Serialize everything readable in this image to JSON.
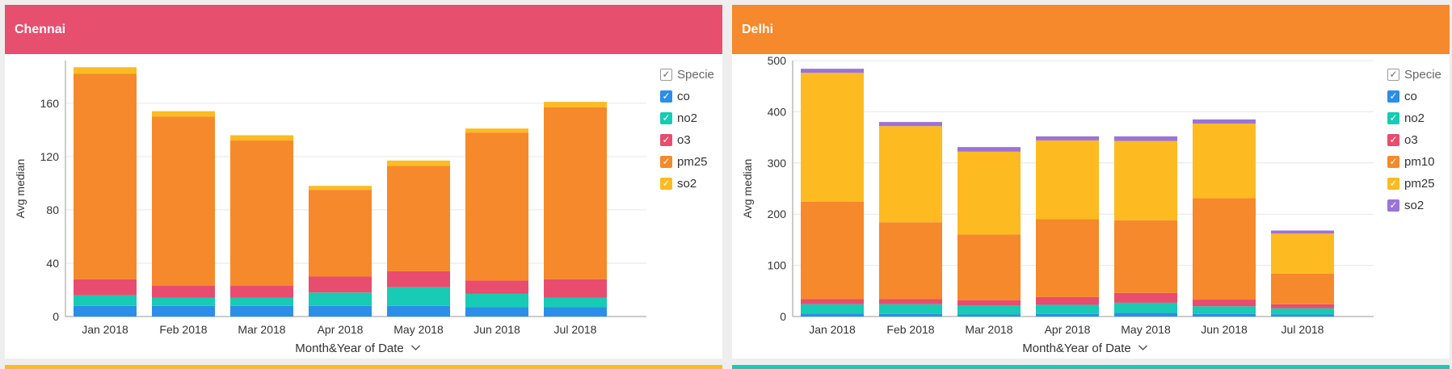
{
  "panels": [
    {
      "title": "Chennai",
      "header_color": "#e74f6f",
      "legend_title": "Specie",
      "chart_data": {
        "type": "bar",
        "stacked": true,
        "title": "Chennai",
        "xlabel": "Month&Year of Date",
        "ylabel": "Avg median",
        "categories": [
          "Jan 2018",
          "Feb 2018",
          "Mar 2018",
          "Apr 2018",
          "May 2018",
          "Jun 2018",
          "Jul 2018"
        ],
        "yticks": [
          0,
          40,
          80,
          120,
          160
        ],
        "ylim": [
          0,
          192
        ],
        "grid": true,
        "legend_position": "right",
        "series": [
          {
            "name": "co",
            "color": "#2b8ee8",
            "values": [
              8,
              8,
              8,
              8,
              8,
              7,
              7
            ]
          },
          {
            "name": "no2",
            "color": "#17cbb4",
            "values": [
              8,
              6,
              6,
              10,
              14,
              10,
              7
            ]
          },
          {
            "name": "o3",
            "color": "#e84c6e",
            "values": [
              12,
              9,
              9,
              12,
              12,
              10,
              14
            ]
          },
          {
            "name": "pm25",
            "color": "#f5892b",
            "values": [
              154,
              127,
              109,
              65,
              79,
              111,
              129
            ]
          },
          {
            "name": "so2",
            "color": "#fdbb21",
            "values": [
              5,
              4,
              4,
              3,
              4,
              3,
              4
            ]
          }
        ]
      }
    },
    {
      "title": "Delhi",
      "header_color": "#f5892b",
      "legend_title": "Specie",
      "chart_data": {
        "type": "bar",
        "stacked": true,
        "title": "Delhi",
        "xlabel": "Month&Year of Date",
        "ylabel": "Avg median",
        "categories": [
          "Jan 2018",
          "Feb 2018",
          "Mar 2018",
          "Apr 2018",
          "May 2018",
          "Jun 2018",
          "Jul 2018"
        ],
        "yticks": [
          0,
          100,
          200,
          300,
          400,
          500
        ],
        "ylim": [
          0,
          500
        ],
        "grid": true,
        "legend_position": "right",
        "series": [
          {
            "name": "co",
            "color": "#2b8ee8",
            "values": [
              6,
              5,
              4,
              5,
              7,
              5,
              4
            ]
          },
          {
            "name": "no2",
            "color": "#17cbb4",
            "values": [
              18,
              19,
              17,
              18,
              20,
              15,
              12
            ]
          },
          {
            "name": "o3",
            "color": "#e84c6e",
            "values": [
              10,
              10,
              11,
              15,
              19,
              13,
              8
            ]
          },
          {
            "name": "pm10",
            "color": "#f5892b",
            "values": [
              190,
              150,
              128,
              152,
              142,
              198,
              60
            ]
          },
          {
            "name": "pm25",
            "color": "#fdbb21",
            "values": [
              252,
              188,
              162,
              154,
              155,
              146,
              78
            ]
          },
          {
            "name": "so2",
            "color": "#9b73d6",
            "values": [
              8,
              8,
              9,
              8,
              9,
              8,
              6
            ]
          }
        ]
      }
    }
  ],
  "bottom_strips": [
    "#fdbb21",
    "#17cbb4"
  ]
}
